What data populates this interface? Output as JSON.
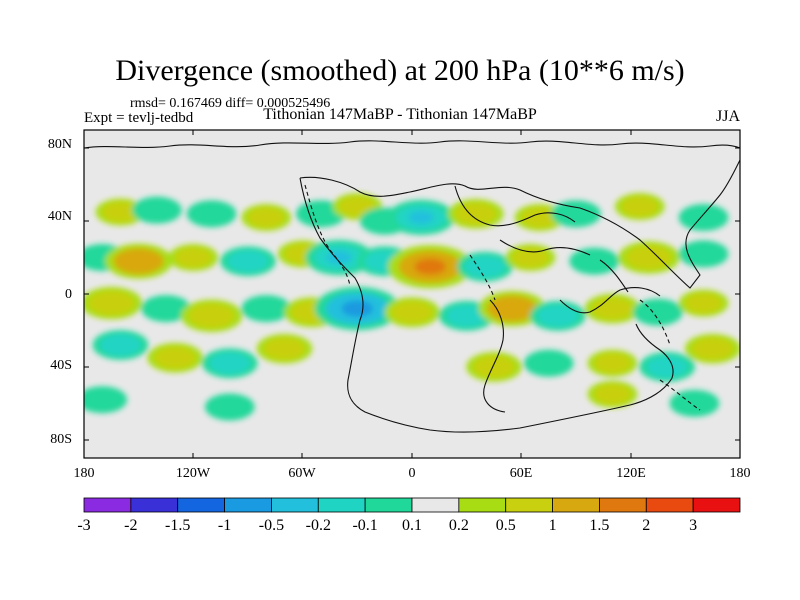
{
  "title": "Divergence (smoothed) at 200 hPa (10**6 m/s)",
  "stats": "rmsd= 0.167469 diff= 0.000525496",
  "expt": "Expt = tevlj-tedbd",
  "subtitle": "Tithonian 147MaBP - Tithonian 147MaBP",
  "season": "JJA",
  "lat_labels": [
    "80N",
    "40N",
    "0",
    "40S",
    "80S"
  ],
  "lon_labels": [
    "180",
    "120W",
    "60W",
    "0",
    "60E",
    "120E",
    "180"
  ],
  "colorbar": {
    "labels": [
      "-3",
      "-2",
      "-1.5",
      "-1",
      "-0.5",
      "-0.2",
      "-0.1",
      "0.1",
      "0.2",
      "0.5",
      "1",
      "1.5",
      "2",
      "3"
    ],
    "colors": [
      "#8a2be2",
      "#3a30d8",
      "#1466e0",
      "#1a9ae0",
      "#22c0dd",
      "#20d4c4",
      "#20d89a",
      "#e8e8e8",
      "#a8dd14",
      "#c8d010",
      "#d8a810",
      "#e07810",
      "#e84a10",
      "#e81010"
    ]
  },
  "chart_data": {
    "type": "heatmap",
    "title": "Divergence (smoothed) at 200 hPa (10**6 m/s)",
    "variable": "Divergence (smoothed) difference",
    "units": "10**6 m/s",
    "xlim": [
      -180,
      180
    ],
    "ylim": [
      -90,
      90
    ],
    "contour_levels": [
      -3,
      -2,
      -1.5,
      -1,
      -0.5,
      -0.2,
      -0.1,
      0.1,
      0.2,
      0.5,
      1,
      1.5,
      2,
      3
    ],
    "blobs": [
      {
        "lon": -160,
        "lat": 45,
        "v": 0.2
      },
      {
        "lon": -140,
        "lat": 46,
        "v": -0.2
      },
      {
        "lon": -110,
        "lat": 44,
        "v": -0.2
      },
      {
        "lon": -80,
        "lat": 42,
        "v": 0.2
      },
      {
        "lon": -50,
        "lat": 44,
        "v": -0.2
      },
      {
        "lon": -30,
        "lat": 48,
        "v": 0.2
      },
      {
        "lon": -15,
        "lat": 40,
        "v": -0.2
      },
      {
        "lon": 5,
        "lat": 42,
        "v": -0.5
      },
      {
        "lon": 35,
        "lat": 44,
        "v": 0.3
      },
      {
        "lon": 70,
        "lat": 42,
        "v": 0.2
      },
      {
        "lon": 90,
        "lat": 44,
        "v": -0.2
      },
      {
        "lon": 125,
        "lat": 48,
        "v": 0.2
      },
      {
        "lon": 160,
        "lat": 42,
        "v": -0.2
      },
      {
        "lon": -170,
        "lat": 20,
        "v": -0.2
      },
      {
        "lon": -150,
        "lat": 18,
        "v": 0.5
      },
      {
        "lon": -120,
        "lat": 20,
        "v": 0.2
      },
      {
        "lon": -90,
        "lat": 18,
        "v": -0.3
      },
      {
        "lon": -60,
        "lat": 22,
        "v": 0.2
      },
      {
        "lon": -40,
        "lat": 20,
        "v": -0.5
      },
      {
        "lon": -15,
        "lat": 18,
        "v": -0.3
      },
      {
        "lon": 10,
        "lat": 15,
        "v": 0.8
      },
      {
        "lon": 40,
        "lat": 15,
        "v": -0.3
      },
      {
        "lon": 65,
        "lat": 20,
        "v": 0.2
      },
      {
        "lon": 100,
        "lat": 18,
        "v": -0.2
      },
      {
        "lon": 130,
        "lat": 20,
        "v": 0.4
      },
      {
        "lon": 160,
        "lat": 22,
        "v": -0.2
      },
      {
        "lon": -165,
        "lat": -5,
        "v": 0.4
      },
      {
        "lon": -135,
        "lat": -8,
        "v": -0.2
      },
      {
        "lon": -110,
        "lat": -12,
        "v": 0.4
      },
      {
        "lon": -80,
        "lat": -8,
        "v": -0.2
      },
      {
        "lon": -55,
        "lat": -10,
        "v": 0.3
      },
      {
        "lon": -30,
        "lat": -8,
        "v": -0.8
      },
      {
        "lon": 0,
        "lat": -10,
        "v": 0.3
      },
      {
        "lon": 30,
        "lat": -12,
        "v": -0.3
      },
      {
        "lon": 55,
        "lat": -8,
        "v": 0.5
      },
      {
        "lon": 80,
        "lat": -12,
        "v": -0.3
      },
      {
        "lon": 110,
        "lat": -8,
        "v": 0.3
      },
      {
        "lon": 135,
        "lat": -10,
        "v": -0.2
      },
      {
        "lon": 160,
        "lat": -5,
        "v": 0.2
      },
      {
        "lon": -160,
        "lat": -28,
        "v": -0.3
      },
      {
        "lon": -130,
        "lat": -35,
        "v": 0.3
      },
      {
        "lon": -100,
        "lat": -38,
        "v": -0.3
      },
      {
        "lon": -70,
        "lat": -30,
        "v": 0.3
      },
      {
        "lon": 45,
        "lat": -40,
        "v": 0.3
      },
      {
        "lon": 75,
        "lat": -38,
        "v": -0.2
      },
      {
        "lon": 110,
        "lat": -38,
        "v": 0.2
      },
      {
        "lon": 140,
        "lat": -40,
        "v": -0.3
      },
      {
        "lon": 165,
        "lat": -30,
        "v": 0.3
      },
      {
        "lon": -170,
        "lat": -58,
        "v": -0.2
      },
      {
        "lon": -100,
        "lat": -62,
        "v": -0.2
      },
      {
        "lon": 110,
        "lat": -55,
        "v": 0.2
      },
      {
        "lon": 155,
        "lat": -60,
        "v": -0.2
      }
    ]
  }
}
